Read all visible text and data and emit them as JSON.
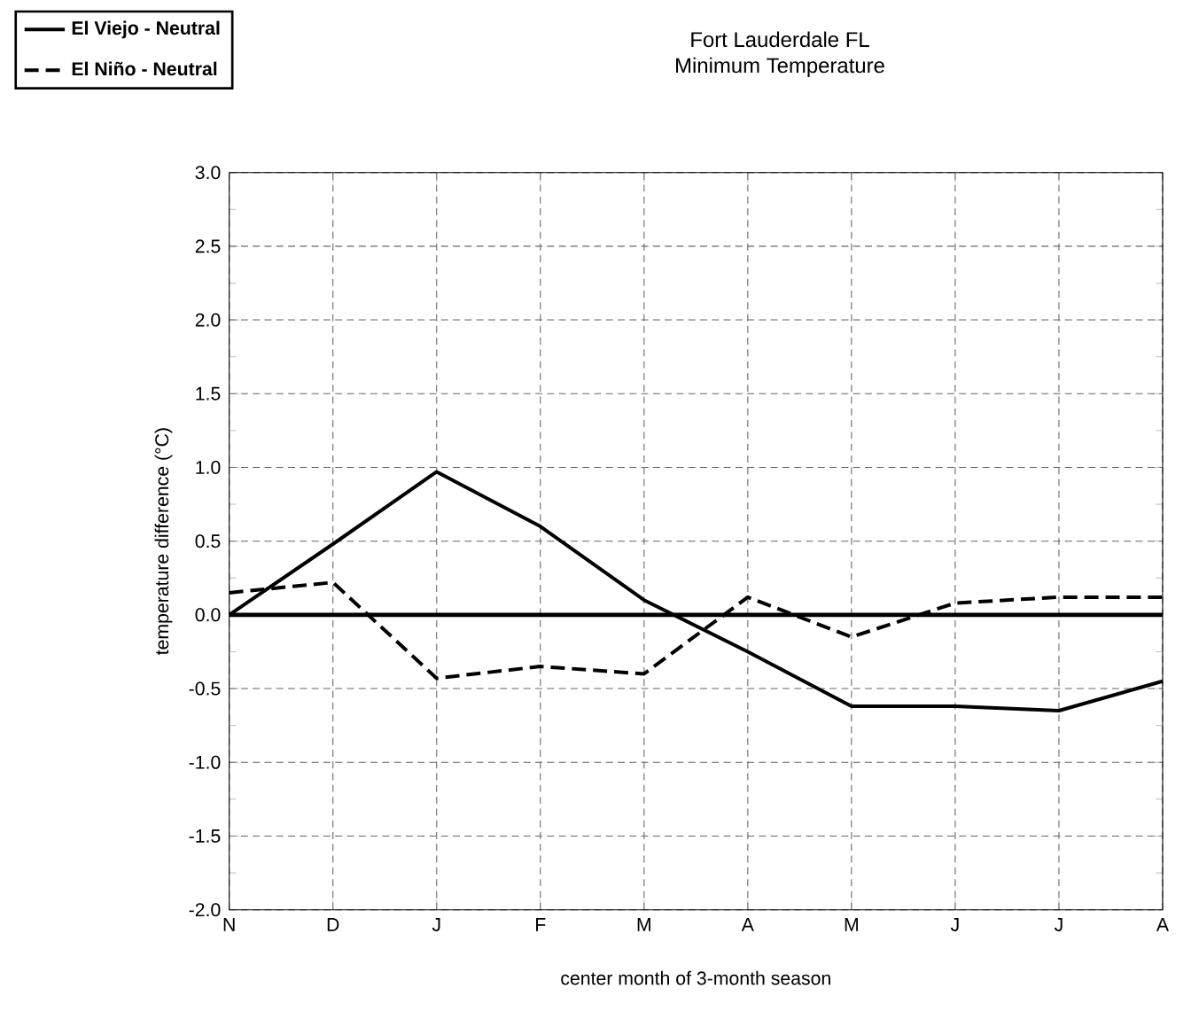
{
  "chart_data": {
    "type": "line",
    "title": "Fort Lauderdale FL\nMinimum Temperature",
    "xlabel": "center month of 3-month season",
    "ylabel": "temperature difference (°C)",
    "categories": [
      "N",
      "D",
      "J",
      "F",
      "M",
      "A",
      "M",
      "J",
      "J",
      "A"
    ],
    "series": [
      {
        "name": "El Viejo - Neutral",
        "color": "#000000",
        "line_style": "solid",
        "values": [
          0,
          0.48,
          0.97,
          0.6,
          0.1,
          -0.25,
          -0.62,
          -0.62,
          -0.65,
          -0.45
        ]
      },
      {
        "name": "El Niño - Neutral",
        "color": "#000000",
        "line_style": "dashed",
        "values": [
          0.15,
          0.22,
          -0.43,
          -0.35,
          -0.4,
          0.12,
          -0.15,
          0.08,
          0.12,
          0.12
        ]
      }
    ],
    "ylim": [
      -2,
      3
    ],
    "yticks": [
      {
        "value": -2,
        "label": "-2.0"
      },
      -1.5,
      {
        "value": -1,
        "label": "-1.0"
      },
      -0.5,
      {
        "value": 0,
        "label": "0.0"
      },
      0.5,
      {
        "value": 1,
        "label": "1.0"
      },
      1.5,
      {
        "value": 2,
        "label": "2.0"
      },
      2.5,
      {
        "value": 3,
        "label": "3.0"
      }
    ],
    "ref_lines": [
      {
        "axis": "y",
        "value": 0,
        "color": "#000000"
      }
    ],
    "grid": true,
    "legend": "top left",
    "marker": "none"
  }
}
